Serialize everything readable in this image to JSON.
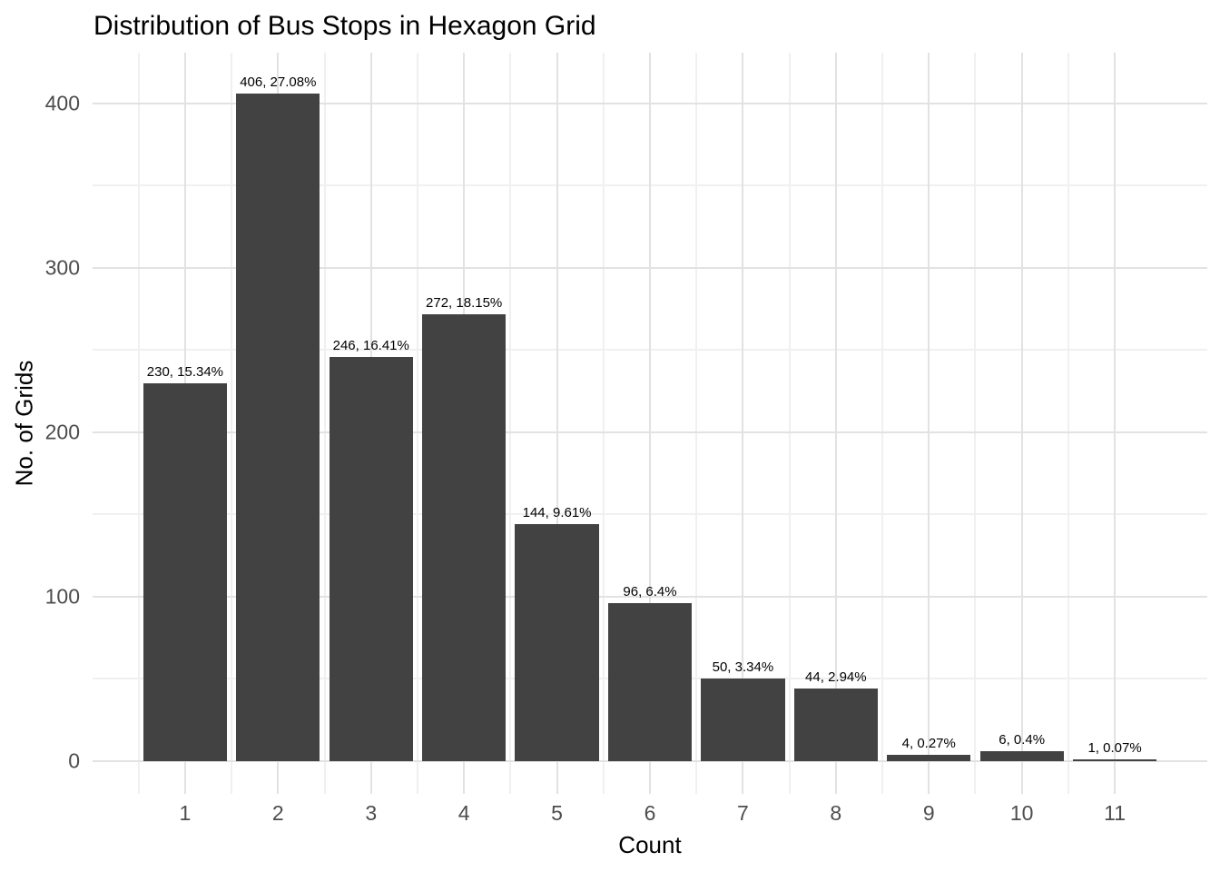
{
  "chart_data": {
    "type": "bar",
    "title": "Distribution of Bus Stops in Hexagon Grid",
    "xlabel": "Count",
    "ylabel": "No. of Grids",
    "categories": [
      "1",
      "2",
      "3",
      "4",
      "5",
      "6",
      "7",
      "8",
      "9",
      "10",
      "11"
    ],
    "values": [
      230,
      406,
      246,
      272,
      144,
      96,
      50,
      44,
      4,
      6,
      1
    ],
    "bar_labels": [
      "230, 15.34%",
      "406, 27.08%",
      "246, 16.41%",
      "272, 18.15%",
      "144, 9.61%",
      "96, 6.4%",
      "50, 3.34%",
      "44, 2.94%",
      "4, 0.27%",
      "6, 0.4%",
      "1, 0.07%"
    ],
    "y_ticks": [
      0,
      100,
      200,
      300,
      400
    ],
    "y_tick_labels": [
      "0",
      "100",
      "200",
      "300",
      "400"
    ],
    "y_minor_ticks": [
      50,
      150,
      250,
      350
    ],
    "x_minor_positions": [
      0.5,
      1.5,
      2.5,
      3.5,
      4.5,
      5.5,
      6.5,
      7.5,
      8.5,
      9.5,
      10.5
    ],
    "xlim": [
      0.005,
      11.995
    ],
    "ylim": [
      -19.9,
      430.9
    ],
    "bar_width": 0.9,
    "grid": true,
    "legend": "none",
    "colors": {
      "bar": "#424242",
      "grid_major": "#e2e2e2",
      "grid_minor": "#f0f0f0",
      "tick_text": "#4d4d4d",
      "text": "#000000",
      "background": "#ffffff"
    }
  }
}
